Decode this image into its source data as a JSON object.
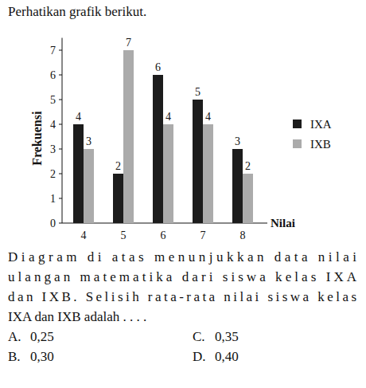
{
  "intro": "Perhatikan grafik berikut.",
  "chart_data": {
    "type": "bar",
    "x_label": "Nilai",
    "y_label": "Frekuensi",
    "categories": [
      "4",
      "5",
      "6",
      "7",
      "8"
    ],
    "series": [
      {
        "name": "IXA",
        "color": "#1c1c1c",
        "values": [
          4,
          2,
          6,
          5,
          3
        ]
      },
      {
        "name": "IXB",
        "color": "#ababab",
        "values": [
          3,
          7,
          4,
          4,
          2
        ]
      }
    ],
    "ylim": [
      0,
      7.5
    ],
    "yticks": [
      0,
      1,
      2,
      3,
      4,
      5,
      6,
      7
    ],
    "data_labels": true,
    "legend": "right",
    "grid": false
  },
  "question": [
    "Diagram di atas menunjukkan data nilai",
    "ulangan matematika dari siswa kelas IXA",
    "dan IXB. Selisih rata-rata nilai siswa kelas",
    "IXA dan IXB adalah . . . ."
  ],
  "options": [
    {
      "letter": "A.",
      "text": "0,25"
    },
    {
      "letter": "B.",
      "text": "0,30"
    },
    {
      "letter": "C.",
      "text": "0,35"
    },
    {
      "letter": "D.",
      "text": "0,40"
    }
  ]
}
